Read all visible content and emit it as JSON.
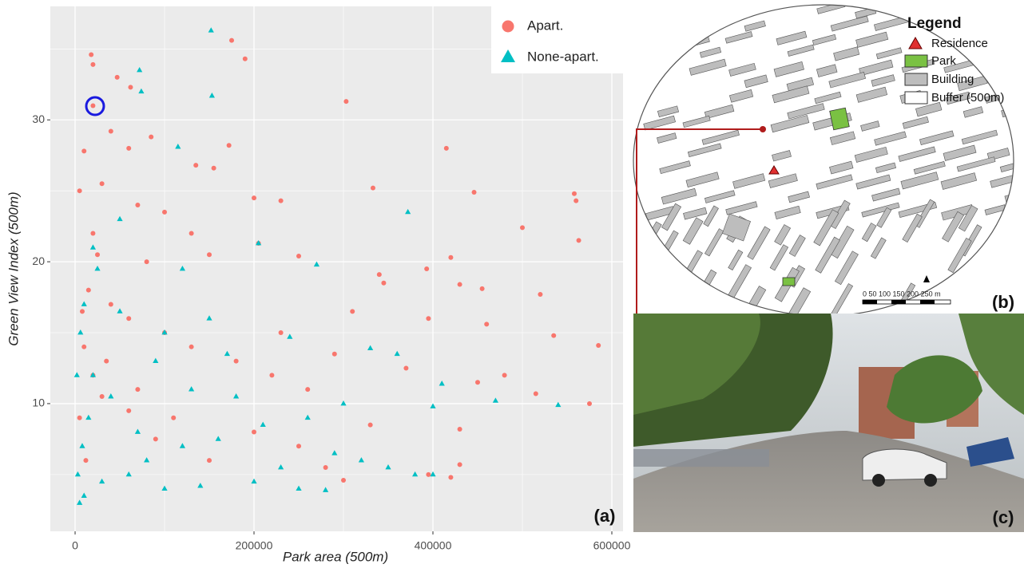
{
  "chart_data": {
    "type": "scatter",
    "xlabel": "Park area (500m)",
    "ylabel": "Green View Index (500m)",
    "xlim": [
      -27700,
      612500
    ],
    "ylim": [
      1,
      38
    ],
    "xticks": [
      0,
      200000,
      400000,
      600000
    ],
    "yticks": [
      10,
      20,
      30
    ],
    "grid": true,
    "legend": "top-right",
    "series": [
      {
        "name": "Apart.",
        "color": "#F8766D",
        "marker": "circle",
        "x": [
          20000,
          18000,
          20000,
          62000,
          47000,
          175000,
          190000,
          303000,
          415000,
          333000,
          446000,
          558000,
          560000,
          563000,
          500000,
          200000,
          230000,
          172000,
          135000,
          155000,
          40000,
          85000,
          60000,
          10000,
          5000,
          30000,
          70000,
          100000,
          130000,
          205000,
          250000,
          150000,
          80000,
          20000,
          15000,
          40000,
          60000,
          100000,
          130000,
          180000,
          220000,
          260000,
          290000,
          340000,
          345000,
          393000,
          420000,
          430000,
          455000,
          520000,
          535000,
          585000,
          460000,
          395000,
          450000,
          480000,
          515000,
          575000,
          395000,
          420000,
          430000,
          430000,
          300000,
          280000,
          250000,
          200000,
          150000,
          110000,
          90000,
          60000,
          30000,
          20000,
          10000,
          5000,
          8000,
          25000,
          12000,
          35000,
          70000,
          230000,
          310000,
          370000,
          330000
        ],
        "values": [
          31.0,
          34.6,
          33.9,
          32.3,
          33.0,
          35.6,
          34.3,
          31.3,
          28.0,
          25.2,
          24.9,
          24.8,
          24.3,
          21.5,
          22.4,
          24.5,
          24.3,
          28.2,
          26.8,
          26.6,
          29.2,
          28.8,
          28.0,
          27.8,
          25.0,
          25.5,
          24.0,
          23.5,
          22.0,
          21.3,
          20.4,
          20.5,
          20.0,
          22.0,
          18.0,
          17.0,
          16.0,
          15.0,
          14.0,
          13.0,
          12.0,
          11.0,
          13.5,
          19.1,
          18.5,
          19.5,
          20.3,
          18.4,
          18.1,
          17.7,
          14.8,
          14.1,
          15.6,
          16.0,
          11.5,
          12.0,
          10.7,
          10.0,
          5.0,
          4.8,
          8.2,
          5.7,
          4.6,
          5.5,
          7.0,
          8.0,
          6.0,
          9.0,
          7.5,
          9.5,
          10.5,
          12.0,
          14.0,
          9.0,
          16.5,
          20.5,
          6.0,
          13.0,
          11.0,
          15.0,
          16.5,
          12.5,
          8.5
        ]
      },
      {
        "name": "None-apart.",
        "color": "#00BFC4",
        "marker": "triangle",
        "x": [
          152000,
          153000,
          74000,
          72000,
          115000,
          50000,
          372000,
          205000,
          20000,
          25000,
          120000,
          270000,
          10000,
          50000,
          100000,
          170000,
          240000,
          330000,
          360000,
          410000,
          470000,
          540000,
          400000,
          300000,
          260000,
          210000,
          160000,
          120000,
          80000,
          60000,
          30000,
          10000,
          5000,
          3000,
          8000,
          15000,
          20000,
          40000,
          100000,
          140000,
          200000,
          250000,
          290000,
          350000,
          380000,
          400000,
          130000,
          180000,
          70000,
          150000,
          90000,
          320000,
          280000,
          230000,
          2000,
          6000
        ],
        "values": [
          36.3,
          31.7,
          32.0,
          33.5,
          28.1,
          23.0,
          23.5,
          21.3,
          21.0,
          19.5,
          19.5,
          19.8,
          17.0,
          16.5,
          15.0,
          13.5,
          14.7,
          13.9,
          13.5,
          11.4,
          10.2,
          9.9,
          9.8,
          10.0,
          9.0,
          8.5,
          7.5,
          7.0,
          6.0,
          5.0,
          4.5,
          3.5,
          3.0,
          5.0,
          7.0,
          9.0,
          12.0,
          10.5,
          4.0,
          4.2,
          4.5,
          4.0,
          6.5,
          5.5,
          5.0,
          5.0,
          11.0,
          10.5,
          8.0,
          16.0,
          13.0,
          6.0,
          3.9,
          5.5,
          12.0,
          15.0
        ]
      }
    ]
  },
  "panel_labels": [
    "(a)",
    "(b)",
    "(c)"
  ],
  "map": {
    "legend_title": "Legend",
    "legend": [
      "Residence",
      "Park",
      "Building",
      "Buffer (500m)"
    ],
    "scale_label": "0   50  100 150 200 250 m"
  }
}
